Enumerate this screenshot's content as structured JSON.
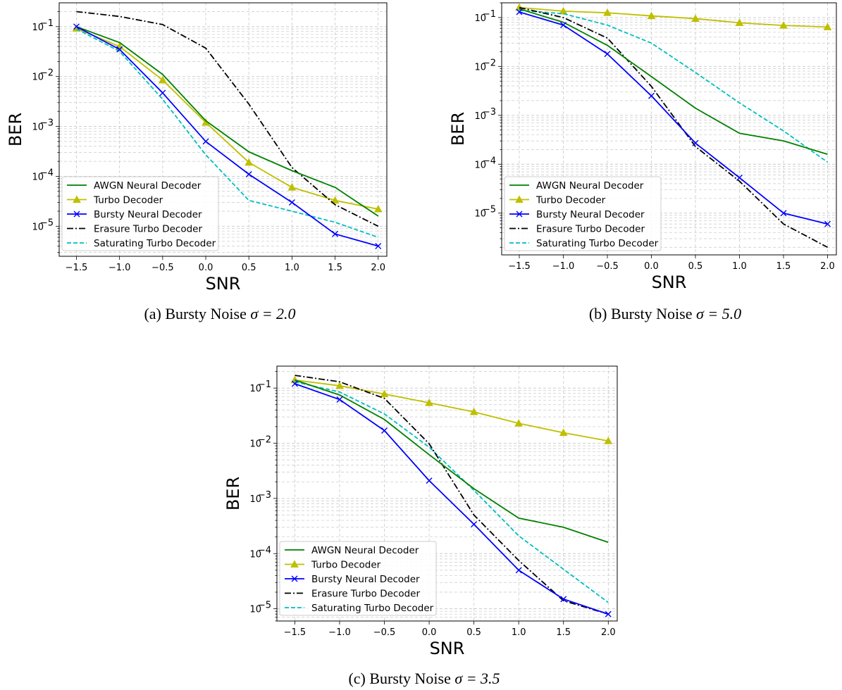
{
  "colors": {
    "awgn": "#008000",
    "turbo": "#bfbf00",
    "bursty": "#0000ff",
    "erasure": "#000000",
    "saturating": "#00bfbf",
    "grid": "#c8c8c8"
  },
  "chart_data": [
    {
      "type": "line",
      "caption_prefix": "(a) Bursty Noise ",
      "caption_math": "σ = 2.0",
      "xlabel": "SNR",
      "ylabel": "BER",
      "yscale": "log",
      "grid": true,
      "legend_position": "lower-left",
      "x": [
        -1.5,
        -1.0,
        -0.5,
        0.0,
        0.5,
        1.0,
        1.5,
        2.0
      ],
      "xticks": [
        "−1.5",
        "−1.0",
        "−0.5",
        "0.0",
        "0.5",
        "1.0",
        "1.5",
        "2.0"
      ],
      "xlim": [
        -1.7,
        2.1
      ],
      "ylim": [
        2.5e-06,
        0.3
      ],
      "ytick_labels": [
        {
          "base": "10",
          "exp": "−5",
          "value": 1e-05
        },
        {
          "base": "10",
          "exp": "−4",
          "value": 0.0001
        },
        {
          "base": "10",
          "exp": "−3",
          "value": 0.001
        },
        {
          "base": "10",
          "exp": "−2",
          "value": 0.01
        },
        {
          "base": "10",
          "exp": "−1",
          "value": 0.1
        }
      ],
      "series": [
        {
          "key": "awgn",
          "name": "AWGN Neural Decoder",
          "style": "solid",
          "marker": "none",
          "values": [
            0.1,
            0.048,
            0.011,
            0.0013,
            0.00031,
            0.00013,
            6e-05,
            1.6e-05
          ]
        },
        {
          "key": "turbo",
          "name": "Turbo Decoder",
          "style": "solid",
          "marker": "triangle",
          "values": [
            0.092,
            0.04,
            0.0085,
            0.0012,
            0.00019,
            6e-05,
            3.3e-05,
            2.2e-05
          ]
        },
        {
          "key": "bursty",
          "name": "Bursty Neural Decoder",
          "style": "solid",
          "marker": "x",
          "values": [
            0.1,
            0.035,
            0.0047,
            0.0005,
            0.00011,
            3e-05,
            7e-06,
            4e-06
          ]
        },
        {
          "key": "erasure",
          "name": "Erasure Turbo Decoder",
          "style": "dashdot",
          "marker": "none",
          "values": [
            0.2,
            0.16,
            0.11,
            0.037,
            0.0028,
            0.00015,
            2.7e-05,
            1e-05
          ]
        },
        {
          "key": "saturating",
          "name": "Saturating Turbo Decoder",
          "style": "dashed",
          "marker": "none",
          "values": [
            0.09,
            0.032,
            0.0035,
            0.00027,
            3.3e-05,
            2e-05,
            1.2e-05,
            6e-06
          ]
        }
      ]
    },
    {
      "type": "line",
      "caption_prefix": "(b) Bursty Noise ",
      "caption_math": "σ = 5.0",
      "xlabel": "SNR",
      "ylabel": "BER",
      "yscale": "log",
      "grid": true,
      "legend_position": "lower-left",
      "x": [
        -1.5,
        -1.0,
        -0.5,
        0.0,
        0.5,
        1.0,
        1.5,
        2.0
      ],
      "xticks": [
        "−1.5",
        "−1.0",
        "−0.5",
        "0.0",
        "0.5",
        "1.0",
        "1.5",
        "2.0"
      ],
      "xlim": [
        -1.7,
        2.1
      ],
      "ylim": [
        1.4e-06,
        0.2
      ],
      "ytick_labels": [
        {
          "base": "10",
          "exp": "−5",
          "value": 1e-05
        },
        {
          "base": "10",
          "exp": "−4",
          "value": 0.0001
        },
        {
          "base": "10",
          "exp": "−3",
          "value": 0.001
        },
        {
          "base": "10",
          "exp": "−2",
          "value": 0.01
        },
        {
          "base": "10",
          "exp": "−1",
          "value": 0.1
        }
      ],
      "series": [
        {
          "key": "awgn",
          "name": "AWGN Neural Decoder",
          "style": "solid",
          "marker": "none",
          "values": [
            0.15,
            0.08,
            0.027,
            0.0062,
            0.0014,
            0.00043,
            0.0003,
            0.00016
          ]
        },
        {
          "key": "turbo",
          "name": "Turbo Decoder",
          "style": "solid",
          "marker": "triangle",
          "values": [
            0.16,
            0.135,
            0.125,
            0.108,
            0.095,
            0.078,
            0.069,
            0.064
          ]
        },
        {
          "key": "bursty",
          "name": "Bursty Neural Decoder",
          "style": "solid",
          "marker": "x",
          "values": [
            0.13,
            0.07,
            0.018,
            0.0025,
            0.00027,
            5.3e-05,
            1e-05,
            6e-06
          ]
        },
        {
          "key": "erasure",
          "name": "Erasure Turbo Decoder",
          "style": "dashdot",
          "marker": "none",
          "values": [
            0.16,
            0.1,
            0.038,
            0.0039,
            0.00023,
            4.5e-05,
            6e-06,
            2e-06
          ]
        },
        {
          "key": "saturating",
          "name": "Saturating Turbo Decoder",
          "style": "dashed",
          "marker": "none",
          "values": [
            0.14,
            0.12,
            0.07,
            0.03,
            0.0075,
            0.0018,
            0.00048,
            0.00011
          ]
        }
      ]
    },
    {
      "type": "line",
      "caption_prefix": "(c) Bursty Noise ",
      "caption_math": "σ = 3.5",
      "xlabel": "SNR",
      "ylabel": "BER",
      "yscale": "log",
      "grid": true,
      "legend_position": "lower-left",
      "x": [
        -1.5,
        -1.0,
        -0.5,
        0.0,
        0.5,
        1.0,
        1.5,
        2.0
      ],
      "xticks": [
        "−1.5",
        "−1.0",
        "−0.5",
        "0.0",
        "0.5",
        "1.0",
        "1.5",
        "2.0"
      ],
      "xlim": [
        -1.7,
        2.1
      ],
      "ylim": [
        6e-06,
        0.25
      ],
      "ytick_labels": [
        {
          "base": "10",
          "exp": "−5",
          "value": 1e-05
        },
        {
          "base": "10",
          "exp": "−4",
          "value": 0.0001
        },
        {
          "base": "10",
          "exp": "−3",
          "value": 0.001
        },
        {
          "base": "10",
          "exp": "−2",
          "value": 0.01
        },
        {
          "base": "10",
          "exp": "−1",
          "value": 0.1
        }
      ],
      "series": [
        {
          "key": "awgn",
          "name": "AWGN Neural Decoder",
          "style": "solid",
          "marker": "none",
          "values": [
            0.14,
            0.075,
            0.027,
            0.0062,
            0.0015,
            0.00044,
            0.0003,
            0.00016
          ]
        },
        {
          "key": "turbo",
          "name": "Turbo Decoder",
          "style": "solid",
          "marker": "triangle",
          "values": [
            0.14,
            0.11,
            0.078,
            0.054,
            0.037,
            0.023,
            0.0155,
            0.011
          ]
        },
        {
          "key": "bursty",
          "name": "Bursty Neural Decoder",
          "style": "solid",
          "marker": "x",
          "values": [
            0.12,
            0.062,
            0.017,
            0.0021,
            0.00034,
            5e-05,
            1.5e-05,
            8e-06
          ]
        },
        {
          "key": "erasure",
          "name": "Erasure Turbo Decoder",
          "style": "dashdot",
          "marker": "none",
          "values": [
            0.17,
            0.13,
            0.065,
            0.0098,
            0.0005,
            7.5e-05,
            1.4e-05,
            8e-06
          ]
        },
        {
          "key": "saturating",
          "name": "Saturating Turbo Decoder",
          "style": "dashed",
          "marker": "none",
          "values": [
            0.13,
            0.085,
            0.034,
            0.0085,
            0.0014,
            0.00021,
            5.2e-05,
            1.3e-05
          ]
        }
      ]
    }
  ]
}
